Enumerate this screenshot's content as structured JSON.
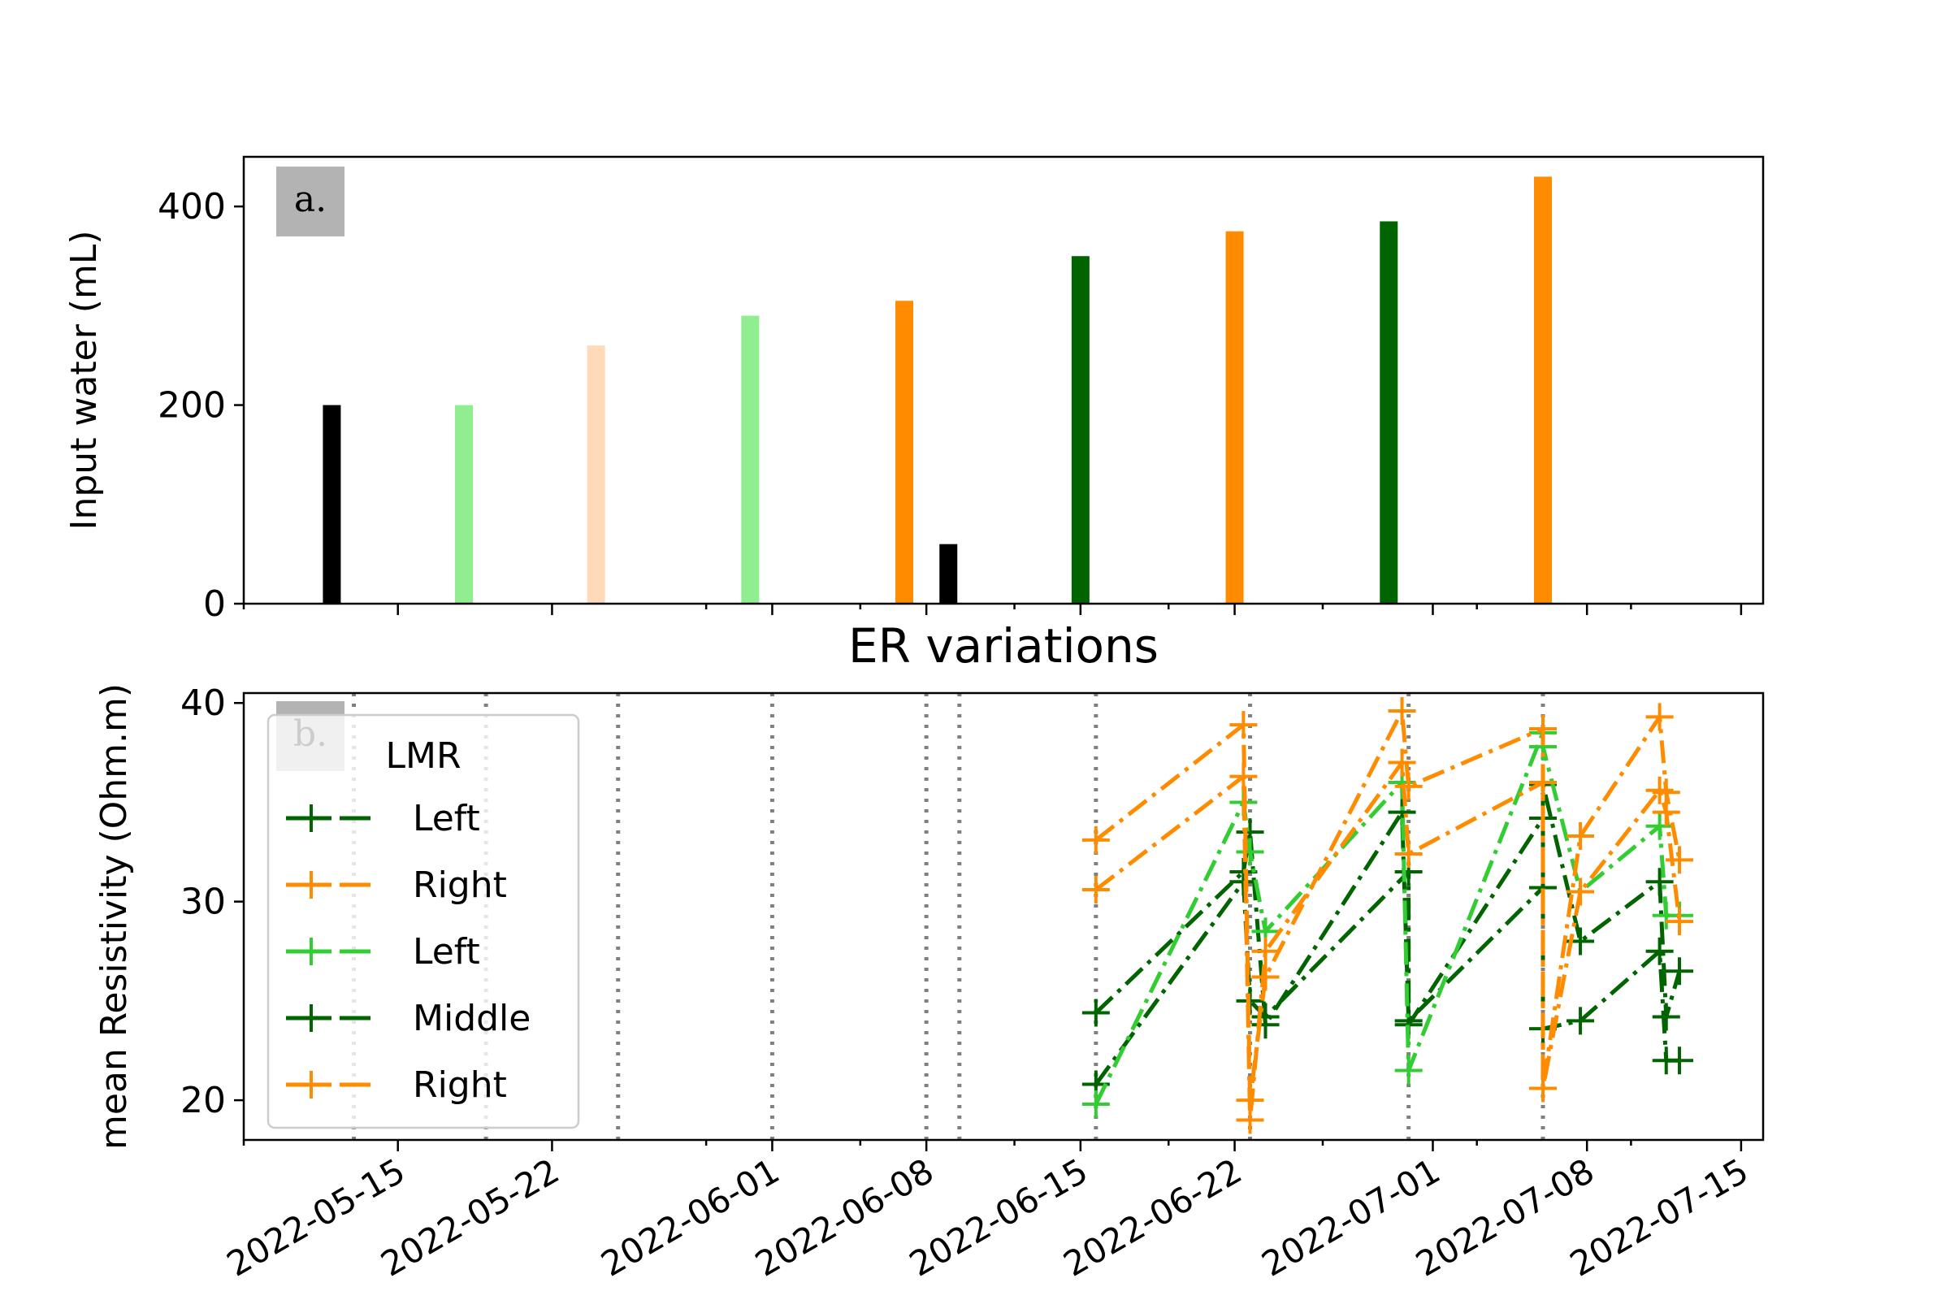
{
  "chart_data": [
    {
      "type": "bar",
      "panel_label": "a.",
      "title": "",
      "xlabel": "",
      "ylabel": "Input water (mL)",
      "ylim": [
        0,
        450
      ],
      "yticks": [
        0,
        200,
        400
      ],
      "x_type": "date",
      "xlim": [
        "2022-05-08",
        "2022-07-16"
      ],
      "grid": false,
      "bars": [
        {
          "date": "2022-05-12",
          "value": 200,
          "color": "#000000"
        },
        {
          "date": "2022-05-18",
          "value": 200,
          "color": "#90ee90"
        },
        {
          "date": "2022-05-24",
          "value": 260,
          "color": "#ffdab9"
        },
        {
          "date": "2022-05-31",
          "value": 290,
          "color": "#90ee90"
        },
        {
          "date": "2022-06-07",
          "value": 305,
          "color": "#ff8c00"
        },
        {
          "date": "2022-06-09",
          "value": 60,
          "color": "#000000"
        },
        {
          "date": "2022-06-15",
          "value": 350,
          "color": "#006400"
        },
        {
          "date": "2022-06-22",
          "value": 375,
          "color": "#ff8c00"
        },
        {
          "date": "2022-06-29",
          "value": 385,
          "color": "#006400"
        },
        {
          "date": "2022-07-06",
          "value": 430,
          "color": "#ff8c00"
        }
      ]
    },
    {
      "type": "line",
      "panel_label": "b.",
      "title": "ER variations",
      "xlabel": "",
      "ylabel": "mean Resistivity (Ohm.m)",
      "ylim": [
        18,
        40.5
      ],
      "yticks": [
        20,
        30,
        40
      ],
      "x_type": "date",
      "xlim": [
        "2022-05-08",
        "2022-07-16"
      ],
      "xticks": [
        "2022-05-15",
        "2022-05-22",
        "2022-06-01",
        "2022-06-08",
        "2022-06-15",
        "2022-06-22",
        "2022-07-01",
        "2022-07-08",
        "2022-07-15"
      ],
      "tick_label_rotation": 30,
      "grid": false,
      "legend": {
        "title": "LMR",
        "placement": "upper-left",
        "entries": [
          {
            "label": "Left",
            "color": "#006400"
          },
          {
            "label": "Right",
            "color": "#ff8c00"
          },
          {
            "label": "Left",
            "color": "#32cd32"
          },
          {
            "label": "Middle",
            "color": "#006400"
          },
          {
            "label": "Right",
            "color": "#ff8c00"
          }
        ]
      },
      "vlines": [
        "2022-05-13",
        "2022-05-19",
        "2022-05-25",
        "2022-06-01",
        "2022-06-08",
        "2022-06-09.5",
        "2022-06-15.7",
        "2022-06-22.7",
        "2022-06-29.9",
        "2022-07-06"
      ],
      "series": [
        {
          "color": "#006400",
          "dash": "dashdot",
          "x": [
            "2022-06-15.7",
            "2022-06-22.4",
            "2022-06-22.7",
            "2022-06-23.4",
            "2022-06-29.9",
            "2022-06-29.9",
            "2022-07-06",
            "2022-07-06",
            "2022-07-07.7",
            "2022-07-11.3",
            "2022-07-11.6",
            "2022-07-12.2"
          ],
          "y": [
            20.8,
            31.0,
            25.0,
            24.2,
            31.5,
            23.8,
            34.2,
            23.6,
            24.0,
            27.5,
            22.0,
            22.0
          ]
        },
        {
          "color": "#006400",
          "dash": "dashdot",
          "x": [
            "2022-06-15.7",
            "2022-06-22.4",
            "2022-06-22.7",
            "2022-06-23.4",
            "2022-06-29.6",
            "2022-06-29.9",
            "2022-07-06",
            "2022-07-06",
            "2022-07-07.7",
            "2022-07-11.3",
            "2022-07-11.6",
            "2022-07-12.2"
          ],
          "y": [
            24.4,
            31.5,
            33.5,
            23.8,
            34.5,
            24.0,
            30.7,
            35.9,
            28.0,
            31.0,
            24.2,
            26.5
          ]
        },
        {
          "color": "#32cd32",
          "dash": "dashdot",
          "x": [
            "2022-06-15.7",
            "2022-06-22.4",
            "2022-06-22.7",
            "2022-06-23.4",
            "2022-06-29.6",
            "2022-06-29.9",
            "2022-07-06",
            "2022-07-06",
            "2022-07-07.7",
            "2022-07-11.3",
            "2022-07-11.6",
            "2022-07-12.2"
          ],
          "y": [
            19.8,
            35.0,
            32.5,
            28.5,
            36.0,
            21.5,
            38.5,
            37.8,
            30.5,
            33.8,
            29.3,
            29.3
          ]
        },
        {
          "color": "#ff8c00",
          "dash": "dashdot",
          "x": [
            "2022-06-15.7",
            "2022-06-22.4",
            "2022-06-22.7",
            "2022-06-23.4",
            "2022-06-29.6",
            "2022-06-29.9",
            "2022-07-06",
            "2022-07-06",
            "2022-07-07.7",
            "2022-07-11.3",
            "2022-07-11.6",
            "2022-07-12.2"
          ],
          "y": [
            33.1,
            38.9,
            20.0,
            26.2,
            39.6,
            35.8,
            38.7,
            20.6,
            33.3,
            39.3,
            35.5,
            32.1
          ]
        },
        {
          "color": "#ff8c00",
          "dash": "dashdot",
          "x": [
            "2022-06-15.7",
            "2022-06-22.4",
            "2022-06-22.7",
            "2022-06-23.4",
            "2022-06-29.6",
            "2022-06-29.9",
            "2022-07-06",
            "2022-07-06",
            "2022-07-07.7",
            "2022-07-11.3",
            "2022-07-11.6",
            "2022-07-12.2"
          ],
          "y": [
            30.6,
            36.3,
            19.0,
            27.5,
            37.0,
            32.4,
            36.0,
            20.6,
            30.5,
            35.6,
            34.5,
            29.0
          ]
        }
      ]
    }
  ]
}
